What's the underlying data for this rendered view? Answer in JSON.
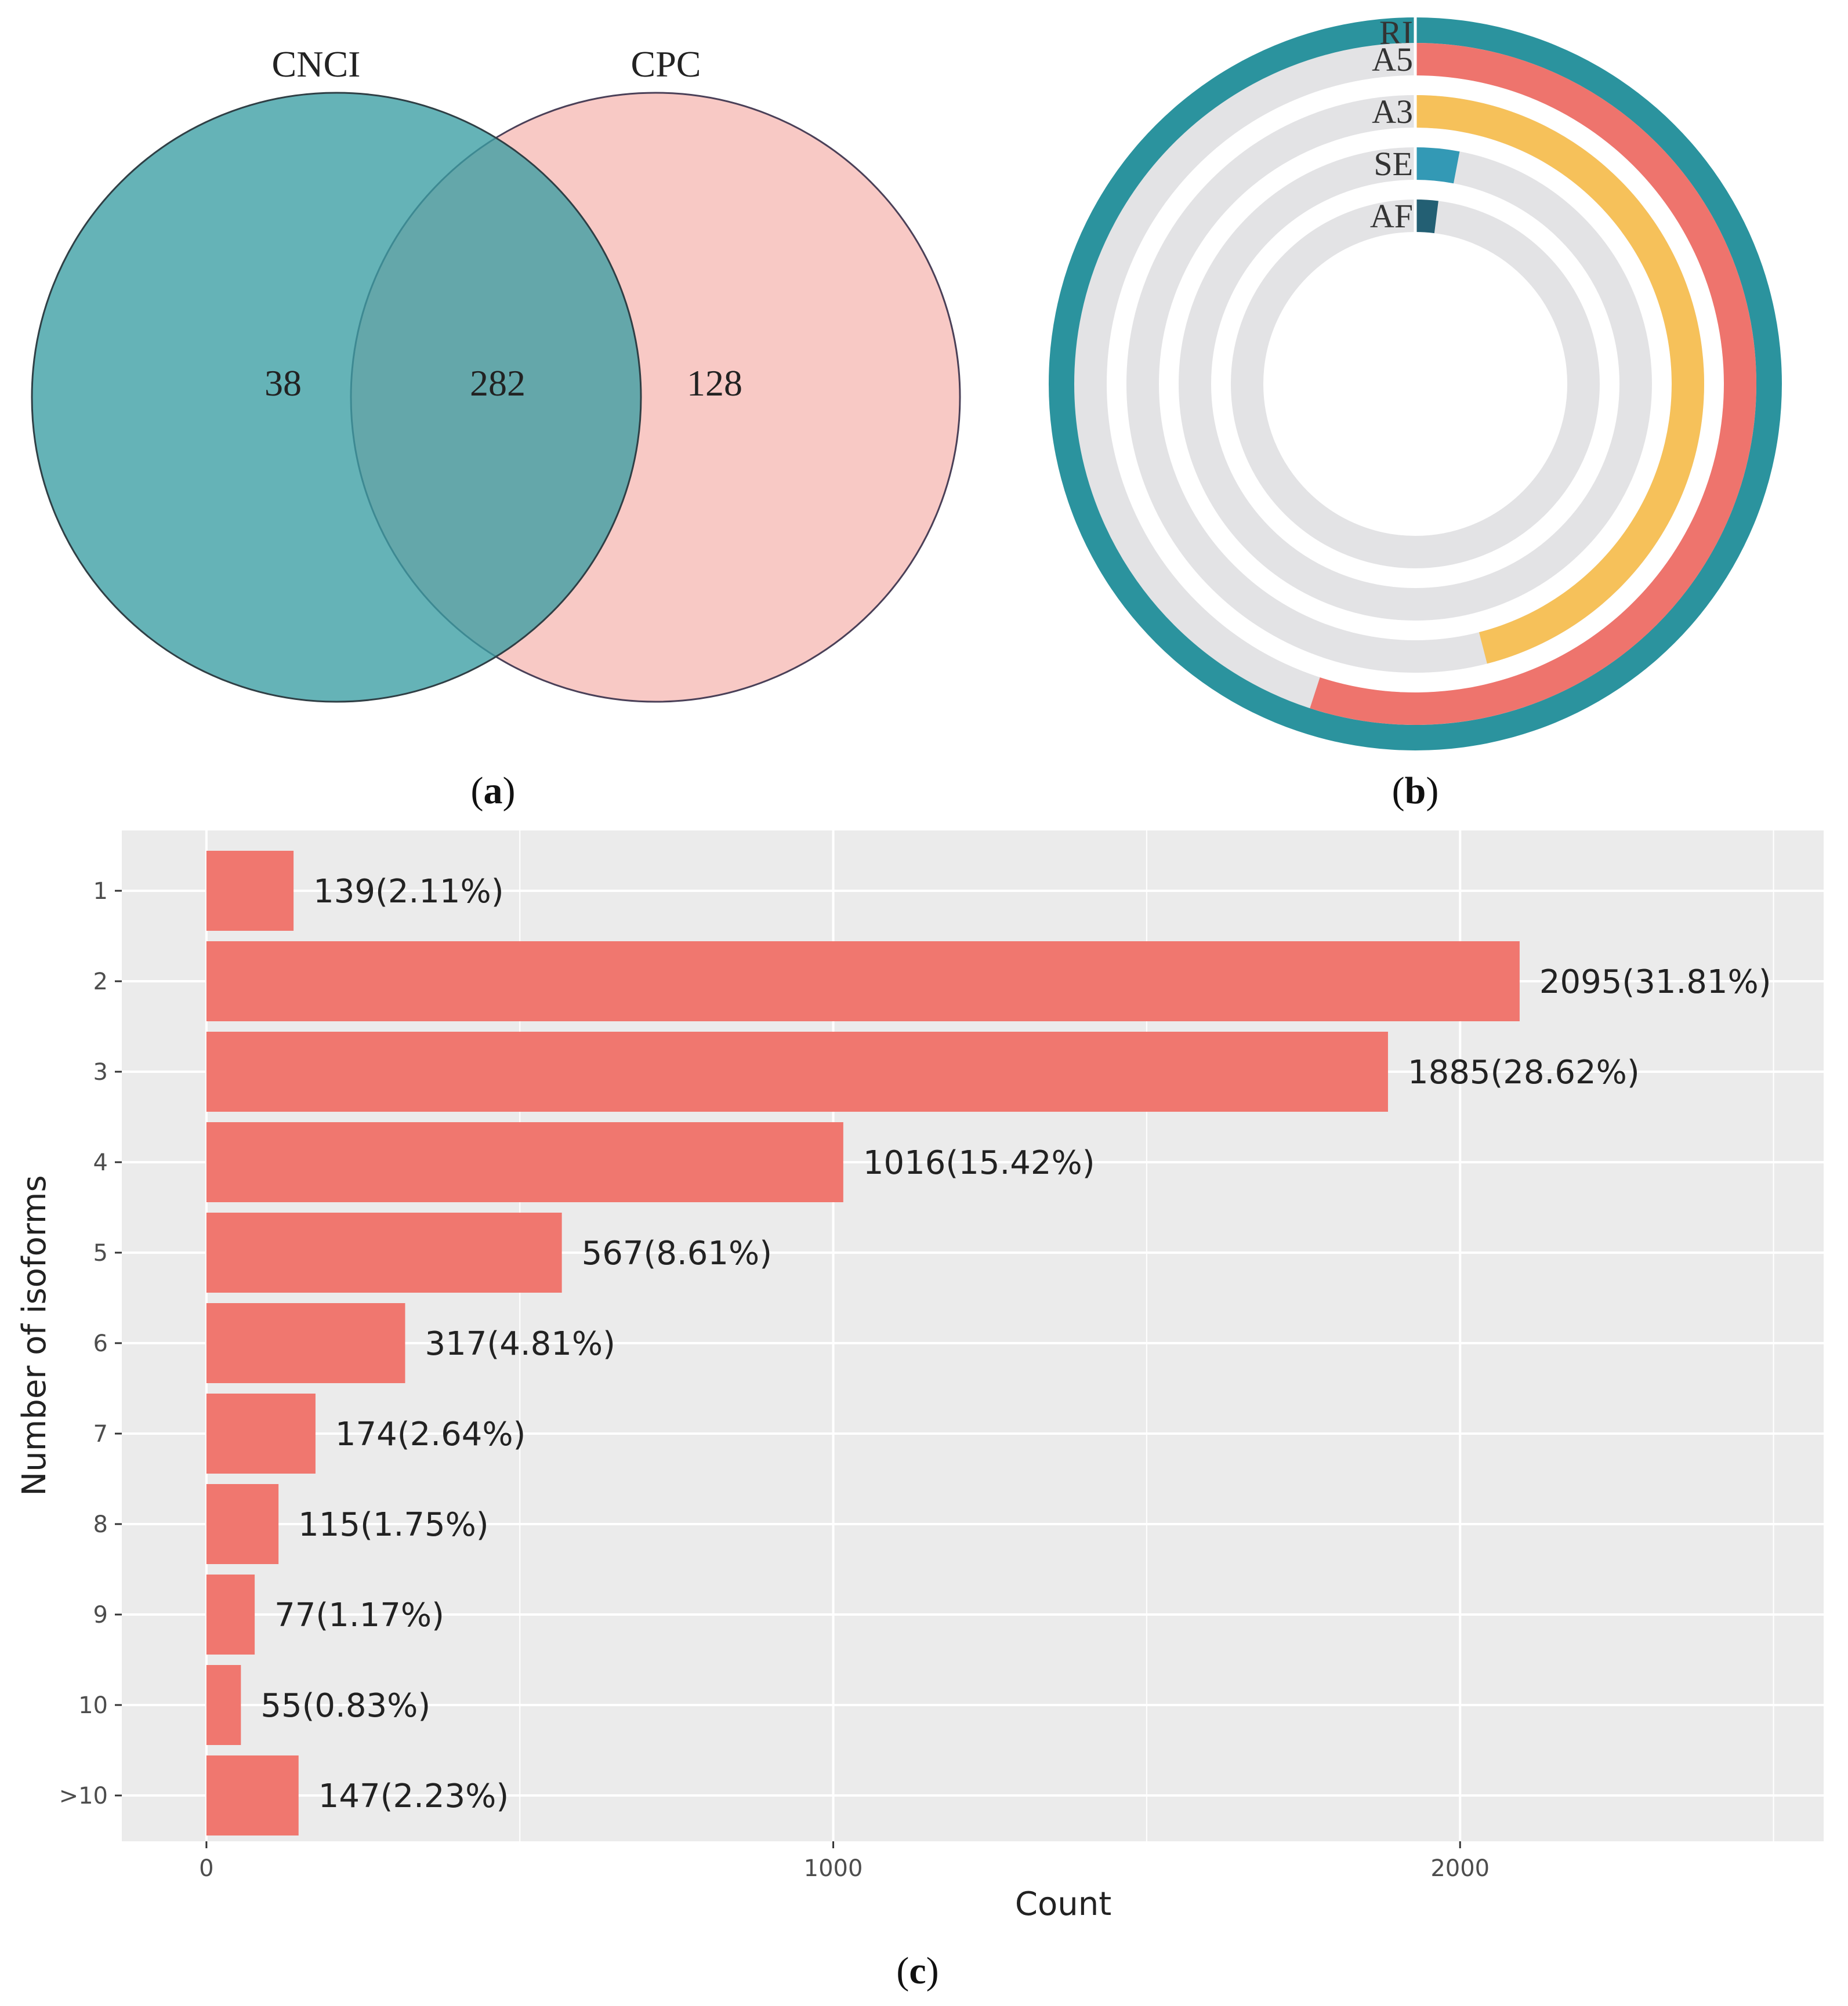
{
  "panel_labels": {
    "a": "a",
    "b": "b",
    "c": "c"
  },
  "colors": {
    "cnci": "#3a9ea3",
    "cpc": "#f5b4ae",
    "ri": "#2b939e",
    "a5": "#ee746d",
    "a3": "#f6c15a",
    "se": "#3399b5",
    "af": "#235f73",
    "track": "#e3e3e5",
    "bar": "#f0776f",
    "plot_bg": "#ebebeb",
    "grid": "#ffffff"
  },
  "chart_data": [
    {
      "type": "venn",
      "sets": [
        "CNCI",
        "CPC"
      ],
      "regions": {
        "CNCI_only": 38,
        "both": 282,
        "CPC_only": 128
      }
    },
    {
      "type": "radial-bar",
      "categories": [
        "RI",
        "A5",
        "A3",
        "SE",
        "AF"
      ],
      "values": [
        1.0,
        0.55,
        0.46,
        0.03,
        0.02
      ],
      "value_unit": "fraction of full circle (estimated)"
    },
    {
      "type": "bar",
      "orientation": "horizontal",
      "categories": [
        "1",
        "2",
        "3",
        "4",
        "5",
        "6",
        "7",
        "8",
        "9",
        "10",
        ">10"
      ],
      "values": [
        139,
        2095,
        1885,
        1016,
        567,
        317,
        174,
        115,
        77,
        55,
        147
      ],
      "labels": [
        "139(2.11%)",
        "2095(31.81%)",
        "1885(28.62%)",
        "1016(15.42%)",
        "567(8.61%)",
        "317(4.81%)",
        "174(2.64%)",
        "115(1.75%)",
        "77(1.17%)",
        "55(0.83%)",
        "147(2.23%)"
      ],
      "xlabel": "Count",
      "ylabel": "Number of isoforms",
      "xlim": [
        -135,
        2580
      ],
      "xticks": [
        0,
        1000,
        2000
      ],
      "xtick_labels": [
        "0",
        "1000",
        "2000"
      ],
      "grid": true
    }
  ]
}
